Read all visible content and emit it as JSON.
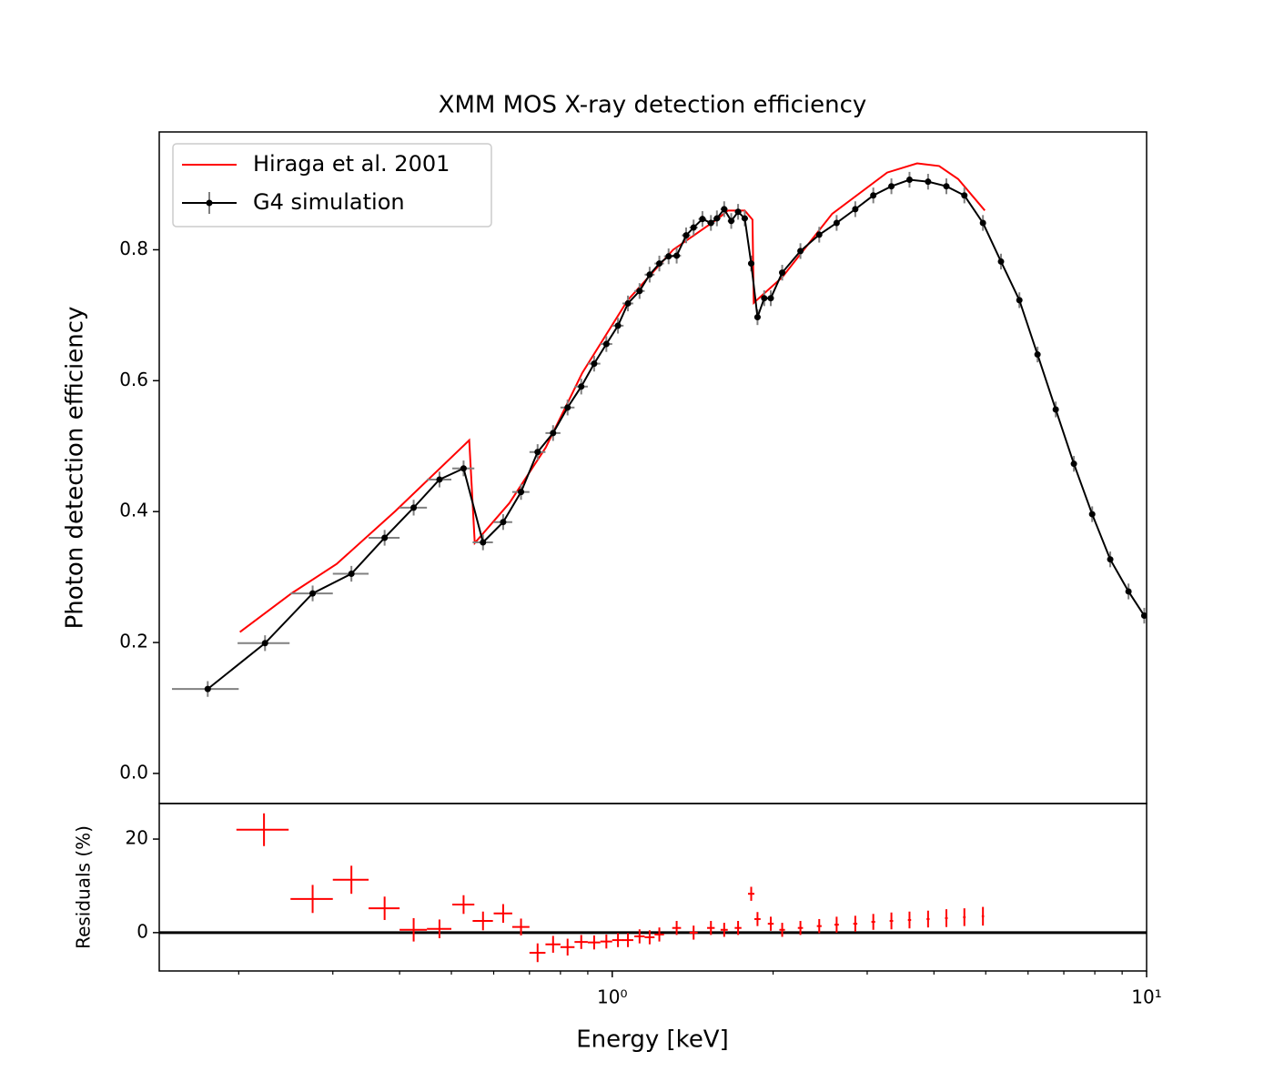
{
  "chart_data": [
    {
      "type": "line",
      "title": "XMM MOS X-ray detection efficiency",
      "ylabel": "Photon detection efficiency",
      "log_x": true,
      "xlim": [
        0.142,
        10
      ],
      "ylim": [
        -0.046,
        0.98
      ],
      "yticks": [
        {
          "value": 0,
          "label": "0.0"
        },
        0.2,
        0.4,
        0.6,
        0.8
      ],
      "legend": "upper left",
      "series": [
        {
          "name": "Hiraga et al. 2001",
          "color": "#ff0000",
          "x": [
            0.201,
            0.251,
            0.305,
            0.393,
            0.54,
            0.553,
            0.642,
            0.751,
            0.879,
            1.069,
            1.3,
            1.58,
            1.645,
            1.77,
            1.83,
            1.84,
            2.08,
            2.58,
            3.27,
            3.72,
            4.09,
            4.44,
            4.98
          ],
          "values": [
            0.216,
            0.275,
            0.32,
            0.401,
            0.509,
            0.352,
            0.413,
            0.498,
            0.612,
            0.723,
            0.8,
            0.848,
            0.86,
            0.86,
            0.846,
            0.719,
            0.758,
            0.855,
            0.918,
            0.932,
            0.928,
            0.908,
            0.86
          ]
        },
        {
          "name": "G4 simulation",
          "color": "#000000",
          "error_color": "#808080",
          "xerr": 0.025,
          "yerr": 0.012,
          "x": [
            0.175,
            0.224,
            0.275,
            0.325,
            0.375,
            0.425,
            0.475,
            0.527,
            0.573,
            0.625,
            0.675,
            0.725,
            0.775,
            0.825,
            0.875,
            0.925,
            0.975,
            1.025,
            1.07,
            1.125,
            1.175,
            1.225,
            1.275,
            1.32,
            1.375,
            1.42,
            1.475,
            1.53,
            1.57,
            1.62,
            1.67,
            1.72,
            1.77,
            1.82,
            1.87,
            1.925,
            1.98,
            2.08,
            2.25,
            2.44,
            2.63,
            2.85,
            3.08,
            3.33,
            3.6,
            3.9,
            4.22,
            4.56,
            4.94,
            5.34,
            5.78,
            6.25,
            6.76,
            7.31,
            7.91,
            8.55,
            9.25,
            9.9
          ],
          "values": [
            0.129,
            0.199,
            0.275,
            0.305,
            0.36,
            0.406,
            0.449,
            0.466,
            0.353,
            0.384,
            0.43,
            0.491,
            0.52,
            0.559,
            0.591,
            0.626,
            0.656,
            0.684,
            0.718,
            0.737,
            0.762,
            0.779,
            0.79,
            0.791,
            0.822,
            0.834,
            0.847,
            0.841,
            0.848,
            0.862,
            0.844,
            0.858,
            0.848,
            0.779,
            0.697,
            0.726,
            0.726,
            0.765,
            0.798,
            0.823,
            0.841,
            0.862,
            0.883,
            0.897,
            0.907,
            0.904,
            0.897,
            0.883,
            0.841,
            0.782,
            0.723,
            0.64,
            0.556,
            0.473,
            0.396,
            0.327,
            0.278,
            0.241
          ]
        }
      ]
    },
    {
      "type": "errorbar",
      "ylabel": "Residuals (%)",
      "xlabel": "Energy [keV]",
      "log_x": true,
      "xlim": [
        0.142,
        10
      ],
      "ylim": [
        -8.2,
        27.6
      ],
      "yticks": [
        0,
        20
      ],
      "xticks": [
        {
          "value": 1,
          "label": "10⁰"
        },
        {
          "value": 10,
          "label": "10¹"
        }
      ],
      "xminorticks": [
        0.2,
        0.3,
        0.4,
        0.5,
        0.6,
        0.7,
        0.8,
        0.9,
        2,
        3,
        4,
        5,
        6,
        7,
        8,
        9
      ],
      "reference_line": 0,
      "color": "#ff0000",
      "xerr": 0.025,
      "x": [
        0.223,
        0.275,
        0.325,
        0.375,
        0.425,
        0.475,
        0.527,
        0.573,
        0.625,
        0.675,
        0.725,
        0.775,
        0.825,
        0.875,
        0.925,
        0.975,
        1.025,
        1.07,
        1.125,
        1.175,
        1.225,
        1.32,
        1.42,
        1.53,
        1.62,
        1.72,
        1.82,
        1.87,
        1.98,
        2.08,
        2.25,
        2.44,
        2.63,
        2.85,
        3.08,
        3.33,
        3.6,
        3.9,
        4.22,
        4.56,
        4.94
      ],
      "values": [
        22.0,
        7.2,
        11.3,
        5.2,
        0.6,
        0.8,
        6.0,
        2.5,
        4.1,
        1.2,
        -4.3,
        -2.5,
        -3.1,
        -2.0,
        -2.1,
        -1.9,
        -1.6,
        -1.6,
        -0.8,
        -1.0,
        -0.4,
        1.0,
        0,
        1.0,
        0.6,
        1.0,
        8.3,
        2.9,
        1.9,
        0.6,
        1.0,
        1.4,
        1.7,
        1.9,
        2.3,
        2.5,
        2.7,
        2.9,
        3.1,
        3.3,
        3.5
      ],
      "yerr": [
        3.5,
        3.0,
        3.0,
        2.5,
        2.5,
        2.0,
        2.0,
        2.0,
        2.0,
        1.8,
        2.0,
        1.8,
        1.8,
        1.5,
        1.5,
        1.5,
        1.5,
        1.5,
        1.5,
        1.5,
        1.5,
        1.5,
        1.5,
        1.5,
        1.5,
        1.5,
        1.5,
        1.5,
        1.5,
        1.5,
        1.5,
        1.5,
        1.7,
        1.7,
        1.7,
        1.8,
        1.8,
        1.8,
        1.9,
        1.9,
        2.0
      ]
    }
  ]
}
